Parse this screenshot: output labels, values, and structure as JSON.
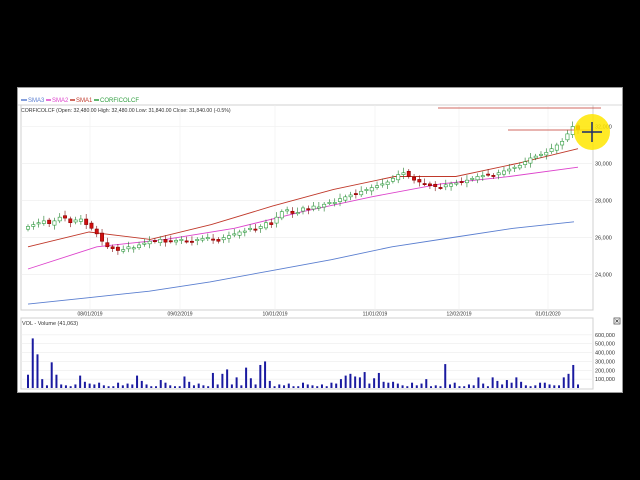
{
  "legend": [
    {
      "label": "SMA3",
      "color": "#5b7fd0"
    },
    {
      "label": "SMA2",
      "color": "#dd44cc"
    },
    {
      "label": "SMA1",
      "color": "#c0392b"
    },
    {
      "label": "CORFICOLCF",
      "color": "#2e9e3e"
    }
  ],
  "info_line": "CORFICOLCF (Open: 32,480.00   High: 32,480.00   Low: 31,840.00   Close: 31,840.00 (-0.5%)",
  "volume_label": "VOL - Volume (41,063)",
  "chart_data": [
    {
      "type": "candlestick",
      "series_name": "CORFICOLCF",
      "x_ticks": [
        "08/01/2019",
        "09/02/2019",
        "10/01/2019",
        "11/01/2019",
        "12/02/2019",
        "01/01/2020"
      ],
      "y_ticks": [
        "32,000",
        "30,000",
        "28,000",
        "26,000",
        "24,000"
      ],
      "ylim": [
        22300,
        33000
      ],
      "close": [
        26600,
        26700,
        26800,
        26900,
        26750,
        26900,
        27100,
        27050,
        26800,
        26950,
        27000,
        26700,
        26500,
        26200,
        25800,
        25500,
        25400,
        25300,
        25350,
        25500,
        25450,
        25600,
        25700,
        25800,
        25800,
        25900,
        25750,
        25800,
        25850,
        25900,
        25800,
        25750,
        25900,
        25950,
        26000,
        25900,
        25800,
        26000,
        26100,
        26200,
        26300,
        26350,
        26500,
        26450,
        26600,
        26800,
        26700,
        27100,
        27400,
        27500,
        27300,
        27350,
        27600,
        27500,
        27700,
        27650,
        27800,
        27900,
        27900,
        28100,
        28200,
        28300,
        28350,
        28500,
        28600,
        28700,
        28800,
        28900,
        29000,
        29200,
        29400,
        29500,
        29300,
        29100,
        29000,
        28900,
        28800,
        28750,
        28700,
        28850,
        28900,
        28950,
        29000,
        29100,
        29200,
        29300,
        29350,
        29400,
        29350,
        29500,
        29600,
        29700,
        29800,
        29900,
        30100,
        30300,
        30400,
        30500,
        30600,
        30800,
        31000,
        31200,
        31600,
        32000,
        31840
      ],
      "sma": [
        {
          "name": "SMA1",
          "color": "#c0392b",
          "values": [
            25500,
            26300,
            25900,
            26700,
            27700,
            28600,
            29300,
            29300,
            30000,
            30800
          ]
        },
        {
          "name": "SMA2",
          "color": "#dd44cc",
          "values": [
            24300,
            25500,
            25900,
            26500,
            27400,
            28200,
            28900,
            29300,
            29800
          ]
        },
        {
          "name": "SMA3",
          "color": "#5b7fd0",
          "values": [
            22400,
            22750,
            23100,
            23600,
            24200,
            24800,
            25500,
            26000,
            26500,
            26850
          ]
        }
      ]
    },
    {
      "type": "bar",
      "series_name": "VOL - Volume",
      "y_ticks": [
        "600,000",
        "500,000",
        "400,000",
        "300,000",
        "200,000",
        "100,000"
      ],
      "ylim": [
        0,
        700000
      ],
      "values": [
        150000,
        560000,
        380000,
        100000,
        30000,
        290000,
        150000,
        40000,
        30000,
        20000,
        40000,
        140000,
        70000,
        50000,
        40000,
        60000,
        30000,
        20000,
        20000,
        60000,
        30000,
        50000,
        40000,
        140000,
        80000,
        40000,
        20000,
        20000,
        90000,
        60000,
        30000,
        20000,
        20000,
        130000,
        70000,
        30000,
        50000,
        30000,
        20000,
        170000,
        40000,
        160000,
        210000,
        40000,
        120000,
        30000,
        230000,
        110000,
        40000,
        260000,
        300000,
        80000,
        20000,
        40000,
        30000,
        50000,
        20000,
        20000,
        60000,
        40000,
        30000,
        20000,
        40000,
        20000,
        60000,
        50000,
        100000,
        140000,
        160000,
        130000,
        120000,
        180000,
        50000,
        110000,
        170000,
        70000,
        60000,
        70000,
        50000,
        30000,
        20000,
        60000,
        30000,
        50000,
        100000,
        20000,
        30000,
        20000,
        270000,
        40000,
        60000,
        20000,
        20000,
        40000,
        30000,
        120000,
        50000,
        20000,
        120000,
        80000,
        40000,
        90000,
        60000,
        120000,
        70000,
        30000,
        20000,
        30000,
        60000,
        60000,
        40000,
        30000,
        30000,
        120000,
        160000,
        260000,
        40000
      ]
    }
  ]
}
